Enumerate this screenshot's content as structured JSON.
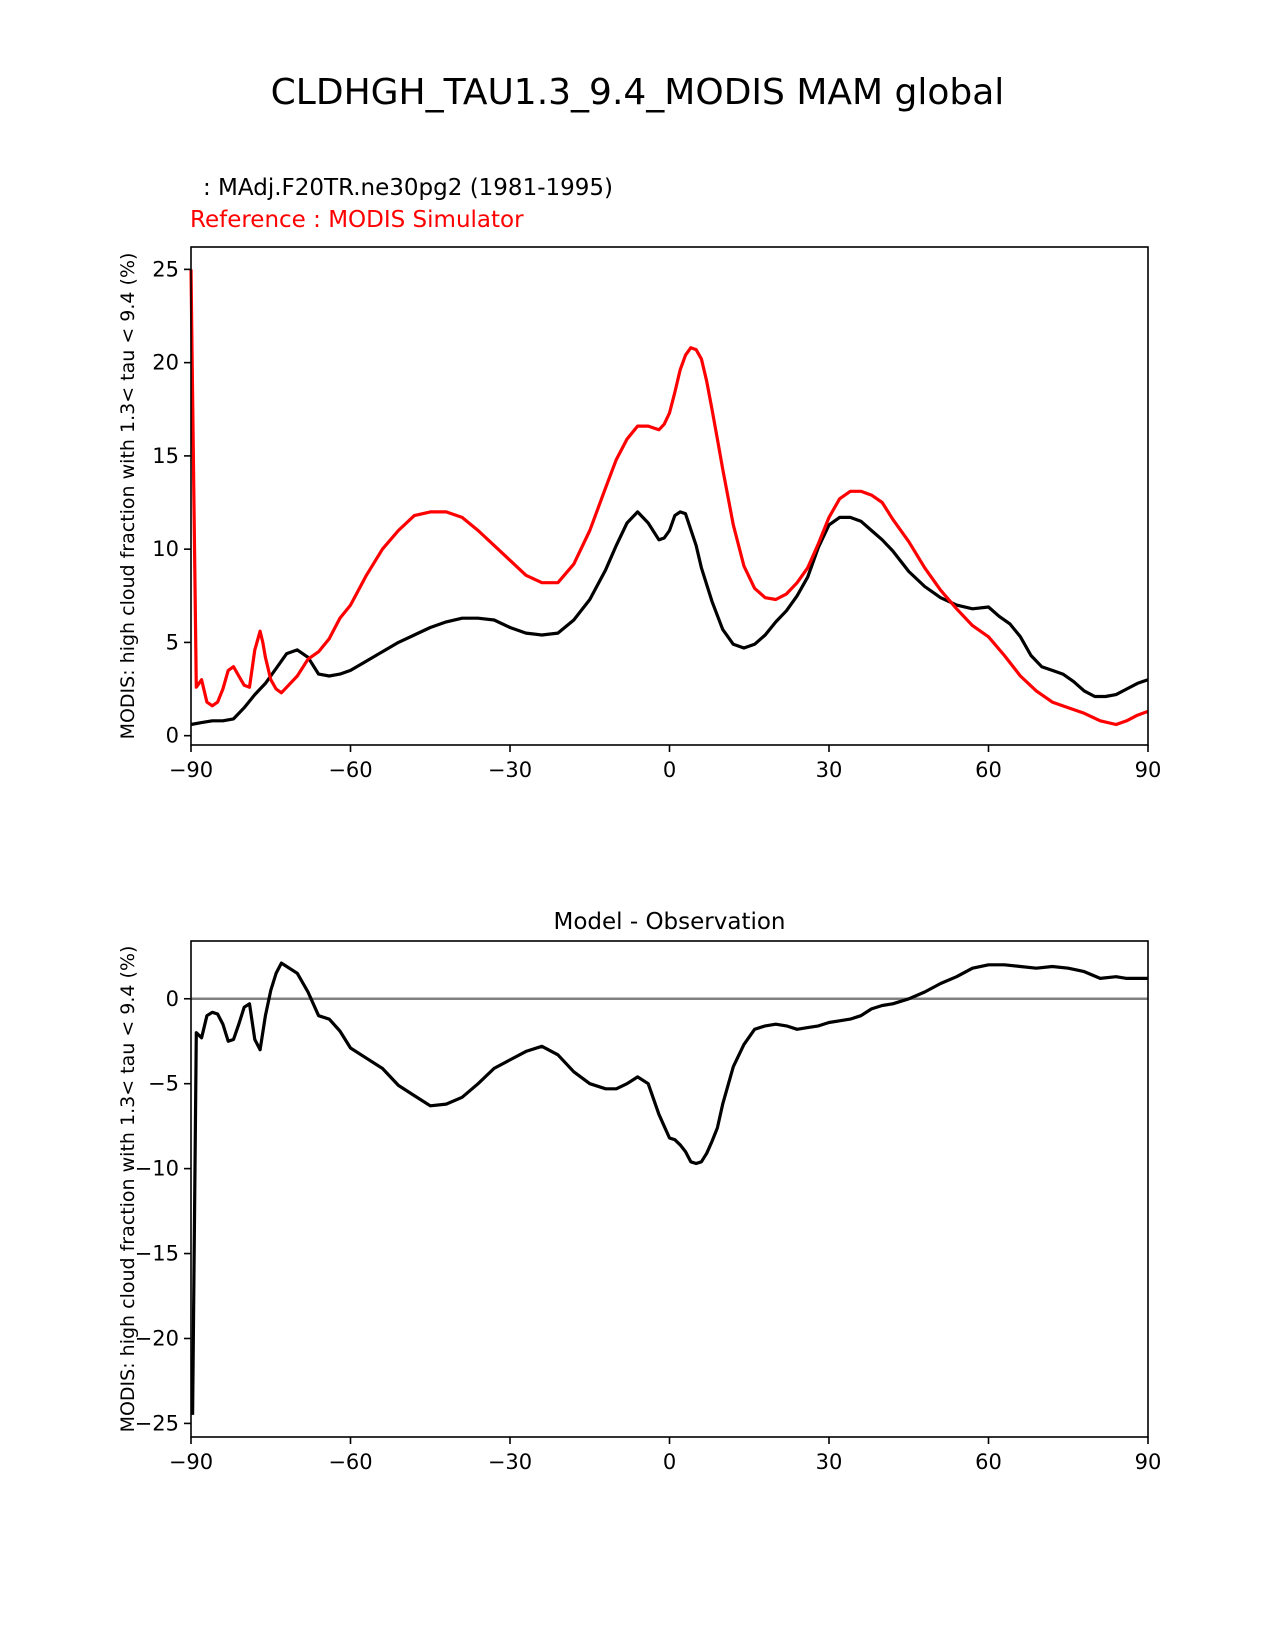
{
  "figure": {
    "title": "CLDHGH_TAU1.3_9.4_MODIS MAM global",
    "model_label": ": MAdj.F20TR.ne30pg2 (1981-1995)",
    "reference_label": "Reference : MODIS Simulator",
    "colors": {
      "model": "#000000",
      "reference": "#ff0000",
      "zero_line": "#808080"
    }
  },
  "chart_data": [
    {
      "type": "line",
      "title": "",
      "xlabel": "",
      "ylabel": "MODIS: high cloud fraction with 1.3< tau < 9.4 (%)",
      "xlim": [
        -90,
        90
      ],
      "ylim": [
        -0.5,
        26.2
      ],
      "xticks": [
        -90,
        -60,
        -30,
        0,
        30,
        60,
        90
      ],
      "xtick_labels": [
        "−90",
        "−60",
        "−30",
        "0",
        "30",
        "60",
        "90"
      ],
      "yticks": [
        0,
        5,
        10,
        15,
        20,
        25
      ],
      "ytick_labels": [
        "0",
        "5",
        "10",
        "15",
        "20",
        "25"
      ],
      "series": [
        {
          "name": "MAdj.F20TR.ne30pg2 (1981-1995)",
          "color": "#000000",
          "x": [
            -90,
            -88,
            -86,
            -84,
            -82,
            -80,
            -78,
            -76,
            -74,
            -72,
            -70,
            -68,
            -66,
            -64,
            -62,
            -60,
            -57,
            -54,
            -51,
            -48,
            -45,
            -42,
            -39,
            -36,
            -33,
            -30,
            -27,
            -24,
            -21,
            -18,
            -15,
            -12,
            -10,
            -8,
            -6,
            -4,
            -2,
            -1,
            0,
            1,
            2,
            3,
            5,
            6,
            8,
            10,
            12,
            14,
            16,
            18,
            20,
            22,
            24,
            26,
            28,
            30,
            32,
            34,
            36,
            38,
            40,
            42,
            45,
            48,
            51,
            54,
            57,
            60,
            62,
            64,
            66,
            68,
            70,
            72,
            74,
            76,
            78,
            80,
            82,
            84,
            86,
            88,
            90
          ],
          "y": [
            0.6,
            0.7,
            0.8,
            0.8,
            0.9,
            1.5,
            2.2,
            2.8,
            3.6,
            4.4,
            4.6,
            4.2,
            3.3,
            3.2,
            3.3,
            3.5,
            4.0,
            4.5,
            5.0,
            5.4,
            5.8,
            6.1,
            6.3,
            6.3,
            6.2,
            5.8,
            5.5,
            5.4,
            5.5,
            6.2,
            7.3,
            8.9,
            10.2,
            11.4,
            12.0,
            11.4,
            10.5,
            10.6,
            11.0,
            11.8,
            12.0,
            11.9,
            10.2,
            9.0,
            7.2,
            5.7,
            4.9,
            4.7,
            4.9,
            5.4,
            6.1,
            6.7,
            7.5,
            8.5,
            10.1,
            11.3,
            11.7,
            11.7,
            11.5,
            11.0,
            10.5,
            9.9,
            8.8,
            8.0,
            7.4,
            7.0,
            6.8,
            6.9,
            6.4,
            6.0,
            5.3,
            4.3,
            3.7,
            3.5,
            3.3,
            2.9,
            2.4,
            2.1,
            2.1,
            2.2,
            2.5,
            2.8,
            3.0
          ]
        },
        {
          "name": "MODIS Simulator",
          "color": "#ff0000",
          "x": [
            -90,
            -89,
            -88,
            -87,
            -86,
            -85,
            -84,
            -83,
            -82,
            -81,
            -80,
            -79,
            -78,
            -77,
            -76.5,
            -76,
            -75,
            -74,
            -73,
            -72,
            -70,
            -68,
            -66,
            -64,
            -62,
            -60,
            -57,
            -54,
            -51,
            -48,
            -45,
            -42,
            -39,
            -36,
            -33,
            -30,
            -27,
            -24,
            -21,
            -18,
            -15,
            -12,
            -10,
            -8,
            -6,
            -4,
            -2,
            -1,
            0,
            1,
            2,
            3,
            4,
            5,
            6,
            7,
            8,
            9,
            10,
            12,
            14,
            16,
            18,
            20,
            22,
            24,
            26,
            28,
            30,
            32,
            34,
            36,
            38,
            40,
            42,
            45,
            48,
            51,
            54,
            57,
            60,
            63,
            66,
            69,
            72,
            75,
            78,
            81,
            84,
            86,
            88,
            90
          ],
          "y": [
            25.0,
            2.6,
            3.0,
            1.8,
            1.6,
            1.8,
            2.5,
            3.5,
            3.7,
            3.2,
            2.7,
            2.6,
            4.6,
            5.6,
            5.0,
            4.2,
            3.0,
            2.5,
            2.3,
            2.6,
            3.2,
            4.1,
            4.5,
            5.2,
            6.3,
            7.0,
            8.6,
            10.0,
            11.0,
            11.8,
            12.0,
            12.0,
            11.7,
            11.0,
            10.2,
            9.4,
            8.6,
            8.2,
            8.2,
            9.2,
            11.0,
            13.3,
            14.8,
            15.9,
            16.6,
            16.6,
            16.4,
            16.7,
            17.3,
            18.4,
            19.6,
            20.4,
            20.8,
            20.7,
            20.2,
            19.0,
            17.5,
            15.9,
            14.3,
            11.3,
            9.1,
            7.9,
            7.4,
            7.3,
            7.6,
            8.2,
            9.0,
            10.3,
            11.7,
            12.7,
            13.1,
            13.1,
            12.9,
            12.5,
            11.6,
            10.4,
            9.0,
            7.8,
            6.8,
            5.9,
            5.3,
            4.3,
            3.2,
            2.4,
            1.8,
            1.5,
            1.2,
            0.8,
            0.6,
            0.8,
            1.1,
            1.3
          ]
        }
      ]
    },
    {
      "type": "line",
      "title": "Model - Observation",
      "xlabel": "",
      "ylabel": "MODIS: high cloud fraction with 1.3< tau < 9.4 (%)",
      "xlim": [
        -90,
        90
      ],
      "ylim": [
        -25.8,
        3.4
      ],
      "xticks": [
        -90,
        -60,
        -30,
        0,
        30,
        60,
        90
      ],
      "xtick_labels": [
        "−90",
        "−60",
        "−30",
        "0",
        "30",
        "60",
        "90"
      ],
      "yticks": [
        0,
        -5,
        -10,
        -15,
        -20,
        -25
      ],
      "ytick_labels": [
        "0",
        "−5",
        "−10",
        "−15",
        "−20",
        "−25"
      ],
      "zero_line": 0,
      "series": [
        {
          "name": "Model - Observation",
          "color": "#000000",
          "x": [
            -89.7,
            -89,
            -88,
            -87,
            -86,
            -85,
            -84,
            -83,
            -82,
            -81,
            -80,
            -79,
            -78,
            -77,
            -76,
            -75,
            -74,
            -73,
            -72,
            -70,
            -68,
            -66,
            -64,
            -62,
            -60,
            -57,
            -54,
            -51,
            -48,
            -45,
            -42,
            -39,
            -36,
            -33,
            -30,
            -27,
            -24,
            -21,
            -18,
            -15,
            -12,
            -10,
            -8,
            -6,
            -4,
            -2,
            -1,
            0,
            1,
            2,
            3,
            4,
            5,
            6,
            7,
            8,
            9,
            10,
            12,
            14,
            16,
            18,
            20,
            22,
            24,
            26,
            28,
            30,
            32,
            34,
            36,
            38,
            40,
            42,
            45,
            48,
            51,
            54,
            57,
            60,
            63,
            66,
            69,
            72,
            75,
            78,
            81,
            84,
            86,
            88,
            90
          ],
          "y": [
            -24.5,
            -2.0,
            -2.3,
            -1.0,
            -0.8,
            -0.9,
            -1.5,
            -2.5,
            -2.4,
            -1.5,
            -0.5,
            -0.3,
            -2.4,
            -3.0,
            -1.0,
            0.5,
            1.5,
            2.1,
            1.9,
            1.5,
            0.4,
            -1.0,
            -1.2,
            -1.9,
            -2.9,
            -3.5,
            -4.1,
            -5.1,
            -5.7,
            -6.3,
            -6.2,
            -5.8,
            -5.0,
            -4.1,
            -3.6,
            -3.1,
            -2.8,
            -3.3,
            -4.3,
            -5.0,
            -5.3,
            -5.3,
            -5.0,
            -4.6,
            -5.0,
            -6.8,
            -7.5,
            -8.2,
            -8.3,
            -8.6,
            -9.0,
            -9.6,
            -9.7,
            -9.6,
            -9.1,
            -8.4,
            -7.6,
            -6.2,
            -4.0,
            -2.7,
            -1.8,
            -1.6,
            -1.5,
            -1.6,
            -1.8,
            -1.7,
            -1.6,
            -1.4,
            -1.3,
            -1.2,
            -1.0,
            -0.6,
            -0.4,
            -0.3,
            0.0,
            0.4,
            0.9,
            1.3,
            1.8,
            2.0,
            2.0,
            1.9,
            1.8,
            1.9,
            1.8,
            1.6,
            1.2,
            1.3,
            1.2,
            1.2,
            1.2
          ]
        }
      ]
    }
  ]
}
